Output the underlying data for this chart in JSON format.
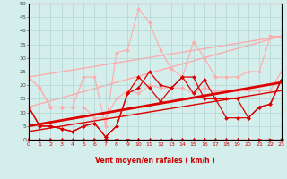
{
  "xlabel": "Vent moyen/en rafales ( km/h )",
  "xlim": [
    0,
    23
  ],
  "ylim": [
    0,
    50
  ],
  "xticks": [
    0,
    1,
    2,
    3,
    4,
    5,
    6,
    7,
    8,
    9,
    10,
    11,
    12,
    13,
    14,
    15,
    16,
    17,
    18,
    19,
    20,
    21,
    22,
    23
  ],
  "yticks": [
    0,
    5,
    10,
    15,
    20,
    25,
    30,
    35,
    40,
    45,
    50
  ],
  "background_color": "#d4eeec",
  "grid_color": "#aaccca",
  "series": [
    {
      "x": [
        0,
        23
      ],
      "y": [
        23,
        38
      ],
      "color": "#ffaaaa",
      "lw": 1.0,
      "marker": null,
      "ms": 0,
      "zorder": 1
    },
    {
      "x": [
        0,
        23
      ],
      "y": [
        12,
        38
      ],
      "color": "#ffaaaa",
      "lw": 1.0,
      "marker": null,
      "ms": 0,
      "zorder": 1
    },
    {
      "x": [
        0,
        1,
        2,
        3,
        4,
        5,
        6,
        7,
        8,
        9,
        10,
        11,
        12,
        13,
        14,
        15,
        16,
        17,
        18,
        19,
        20,
        21,
        22,
        23
      ],
      "y": [
        23,
        19,
        12,
        12,
        12,
        23,
        23,
        5,
        32,
        33,
        48,
        43,
        33,
        26,
        23,
        36,
        30,
        23,
        23,
        23,
        25,
        25,
        38,
        38
      ],
      "color": "#ffaaaa",
      "lw": 0.8,
      "marker": "D",
      "ms": 2.0,
      "zorder": 2
    },
    {
      "x": [
        0,
        1,
        2,
        3,
        4,
        5,
        6,
        7,
        8,
        9,
        10,
        11,
        12,
        13,
        14,
        15,
        16,
        17,
        18,
        19,
        20,
        21,
        22,
        23
      ],
      "y": [
        23,
        19,
        12,
        12,
        12,
        12,
        8,
        8,
        15,
        18,
        17,
        20,
        19,
        19,
        19,
        17,
        19,
        18,
        18,
        18,
        18,
        18,
        18,
        25
      ],
      "color": "#ffaaaa",
      "lw": 0.8,
      "marker": "D",
      "ms": 2.0,
      "zorder": 2
    },
    {
      "x": [
        0,
        23
      ],
      "y": [
        5,
        21
      ],
      "color": "#dd0000",
      "lw": 2.0,
      "marker": null,
      "ms": 0,
      "zorder": 3
    },
    {
      "x": [
        0,
        23
      ],
      "y": [
        3,
        18
      ],
      "color": "#dd0000",
      "lw": 1.0,
      "marker": null,
      "ms": 0,
      "zorder": 3
    },
    {
      "x": [
        0,
        1,
        2,
        3,
        4,
        5,
        6,
        7,
        8,
        9,
        10,
        11,
        12,
        13,
        14,
        15,
        16,
        17,
        18,
        19,
        20,
        21,
        22,
        23
      ],
      "y": [
        12,
        5,
        5,
        4,
        3,
        5,
        6,
        1,
        5,
        17,
        19,
        25,
        20,
        19,
        23,
        23,
        15,
        15,
        8,
        8,
        8,
        12,
        13,
        22
      ],
      "color": "#dd0000",
      "lw": 0.9,
      "marker": "D",
      "ms": 2.0,
      "zorder": 4
    },
    {
      "x": [
        0,
        1,
        2,
        3,
        4,
        5,
        6,
        7,
        8,
        9,
        10,
        11,
        12,
        13,
        14,
        15,
        16,
        17,
        18,
        19,
        20,
        21,
        22,
        23
      ],
      "y": [
        12,
        5,
        5,
        4,
        3,
        5,
        6,
        1,
        5,
        17,
        23,
        19,
        14,
        19,
        23,
        17,
        22,
        15,
        15,
        15,
        8,
        12,
        13,
        22
      ],
      "color": "#dd0000",
      "lw": 0.9,
      "marker": "D",
      "ms": 2.0,
      "zorder": 4
    }
  ],
  "wind_arrow_angles": [
    225,
    225,
    225,
    210,
    200,
    225,
    225,
    270,
    270,
    270,
    90,
    90,
    90,
    90,
    90,
    90,
    90,
    90,
    90,
    90,
    90,
    135,
    135,
    135
  ]
}
